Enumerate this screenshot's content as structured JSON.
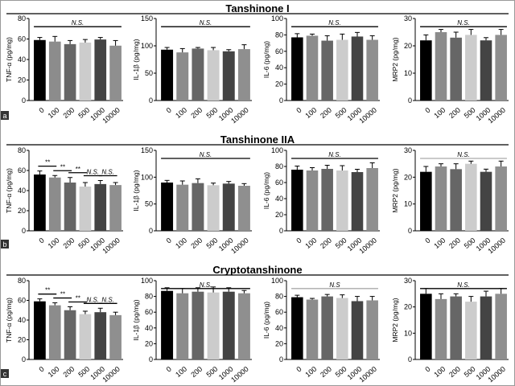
{
  "figure": {
    "rows": [
      {
        "title": "Tanshinone I",
        "panel_label": "a"
      },
      {
        "title": "Tanshinone IIA",
        "panel_label": "b"
      },
      {
        "title": "Cryptotanshinone",
        "panel_label": "c"
      }
    ],
    "bar_colors": [
      "#000000",
      "#8c8c8c",
      "#666666",
      "#cccccc",
      "#444444",
      "#8f8f8f"
    ]
  },
  "chart_data": [
    {
      "type": "bar",
      "row": 0,
      "ylabel": "TNF-α (pg/mg)",
      "categories": [
        "0",
        "100",
        "200",
        "500",
        "1000",
        "10000"
      ],
      "values": [
        59,
        57.5,
        55,
        56.5,
        59.5,
        53.5
      ],
      "errors": [
        2.5,
        5,
        3.5,
        3,
        2,
        5
      ],
      "ylim": [
        0,
        80
      ],
      "yticks": [
        0,
        20,
        40,
        60,
        80
      ],
      "annotations": [
        {
          "from": 0,
          "to": 5,
          "label": "N.S."
        }
      ]
    },
    {
      "type": "bar",
      "row": 0,
      "ylabel": "IL-1β (pg/mg)",
      "categories": [
        "0",
        "100",
        "200",
        "500",
        "1000",
        "10000"
      ],
      "values": [
        93,
        88,
        95,
        92,
        90,
        94
      ],
      "errors": [
        4,
        7,
        2,
        5,
        3,
        8
      ],
      "ylim": [
        0,
        150
      ],
      "yticks": [
        0,
        50,
        100,
        150
      ],
      "annotations": [
        {
          "from": 0,
          "to": 5,
          "label": "N.S."
        }
      ]
    },
    {
      "type": "bar",
      "row": 0,
      "ylabel": "IL-6 (pg/mg)",
      "categories": [
        "0",
        "100",
        "200",
        "500",
        "1000",
        "10000"
      ],
      "values": [
        77,
        79,
        73,
        74,
        78,
        74
      ],
      "errors": [
        4.5,
        2,
        6,
        7,
        5,
        5
      ],
      "ylim": [
        0,
        100
      ],
      "yticks": [
        0,
        20,
        40,
        60,
        80,
        100
      ],
      "annotations": [
        {
          "from": 0,
          "to": 5,
          "label": "N.S."
        }
      ]
    },
    {
      "type": "bar",
      "row": 0,
      "ylabel": "MRP2 (pg/mg)",
      "categories": [
        "0",
        "100",
        "200",
        "500",
        "1000",
        "10000"
      ],
      "values": [
        22,
        25,
        23,
        24,
        22,
        24
      ],
      "errors": [
        2,
        1,
        2,
        2,
        1,
        2
      ],
      "ylim": [
        0,
        30
      ],
      "yticks": [
        0,
        10,
        20,
        30
      ],
      "annotations": [
        {
          "from": 0,
          "to": 5,
          "label": "N.S."
        }
      ]
    },
    {
      "type": "bar",
      "row": 1,
      "ylabel": "TNF-α (pg/mg)",
      "categories": [
        "0",
        "100",
        "200",
        "500",
        "1000",
        "10000"
      ],
      "values": [
        56,
        53,
        48,
        44,
        46.5,
        45.5
      ],
      "errors": [
        3.5,
        2,
        5,
        4,
        3.5,
        2.5
      ],
      "ylim": [
        0,
        80
      ],
      "yticks": [
        0,
        20,
        40,
        60,
        80
      ],
      "annotations": [
        {
          "from": 0,
          "to": 1,
          "label": "**"
        },
        {
          "from": 1,
          "to": 2,
          "label": "**"
        },
        {
          "from": 2,
          "to": 3,
          "label": "**"
        },
        {
          "from": 3,
          "to": 4,
          "label": "N.S."
        },
        {
          "from": 4,
          "to": 5,
          "label": "N.S."
        }
      ]
    },
    {
      "type": "bar",
      "row": 1,
      "ylabel": "IL-1β (pg/mg)",
      "categories": [
        "0",
        "100",
        "200",
        "500",
        "1000",
        "10000"
      ],
      "values": [
        90,
        86,
        89,
        85,
        88,
        84
      ],
      "errors": [
        4,
        7,
        8,
        4,
        4,
        4
      ],
      "ylim": [
        0,
        150
      ],
      "yticks": [
        0,
        50,
        100,
        150
      ],
      "annotations": [
        {
          "from": 0,
          "to": 5,
          "label": "N.S."
        }
      ]
    },
    {
      "type": "bar",
      "row": 1,
      "ylabel": "IL-6 (pg/mg)",
      "categories": [
        "0",
        "100",
        "200",
        "500",
        "1000",
        "10000"
      ],
      "values": [
        76,
        75,
        77,
        75,
        73,
        78
      ],
      "errors": [
        4.5,
        3.5,
        4.5,
        6,
        3.5,
        6.5
      ],
      "ylim": [
        0,
        100
      ],
      "yticks": [
        0,
        20,
        40,
        60,
        80,
        100
      ],
      "annotations": [
        {
          "from": 0,
          "to": 5,
          "label": "N.S."
        }
      ]
    },
    {
      "type": "bar",
      "row": 1,
      "ylabel": "MRP2 (pg/mg)",
      "categories": [
        "0",
        "100",
        "200",
        "500",
        "1000",
        "10000"
      ],
      "values": [
        22,
        24,
        23,
        25,
        22,
        24
      ],
      "errors": [
        2,
        1,
        2,
        1,
        1,
        2
      ],
      "ylim": [
        0,
        30
      ],
      "yticks": [
        0,
        10,
        20,
        30
      ],
      "annotations": [
        {
          "from": 0,
          "to": 5,
          "label": "N.S.",
          "color": "#aaaaaa"
        }
      ]
    },
    {
      "type": "bar",
      "row": 2,
      "ylabel": "TNF-α (pg/mg)",
      "categories": [
        "0",
        "100",
        "200",
        "500",
        "1000",
        "10000"
      ],
      "values": [
        59,
        55,
        50,
        46,
        48,
        45
      ],
      "errors": [
        2.5,
        2.5,
        3.5,
        3,
        4,
        3
      ],
      "ylim": [
        0,
        80
      ],
      "yticks": [
        0,
        20,
        40,
        60,
        80
      ],
      "annotations": [
        {
          "from": 0,
          "to": 1,
          "label": "**"
        },
        {
          "from": 1,
          "to": 2,
          "label": "**"
        },
        {
          "from": 2,
          "to": 3,
          "label": "**"
        },
        {
          "from": 3,
          "to": 4,
          "label": "N.S."
        },
        {
          "from": 4,
          "to": 5,
          "label": "N.S."
        }
      ]
    },
    {
      "type": "bar",
      "row": 2,
      "ylabel": "IL-1β (pg/mg)",
      "categories": [
        "0",
        "100",
        "200",
        "500",
        "1000",
        "10000"
      ],
      "values": [
        87,
        84,
        86,
        85,
        86,
        84
      ],
      "errors": [
        4,
        6,
        5,
        7,
        5,
        3.5
      ],
      "ylim": [
        0,
        100
      ],
      "yticks": [
        0,
        20,
        40,
        60,
        80,
        100
      ],
      "annotations": [
        {
          "from": 0,
          "to": 5,
          "label": "N.S."
        }
      ]
    },
    {
      "type": "bar",
      "row": 2,
      "ylabel": "IL-6 (pg/mg)",
      "categories": [
        "0",
        "100",
        "200",
        "500",
        "1000",
        "10000"
      ],
      "values": [
        79,
        76,
        80,
        78,
        74,
        75
      ],
      "errors": [
        2.5,
        1.5,
        2.5,
        4,
        6,
        5
      ],
      "ylim": [
        0,
        100
      ],
      "yticks": [
        0,
        20,
        40,
        60,
        80,
        100
      ],
      "annotations": [
        {
          "from": 0,
          "to": 5,
          "label": "N.S",
          "color": "#aaaaaa"
        }
      ]
    },
    {
      "type": "bar",
      "row": 2,
      "ylabel": "MRP2 (pg/mg)",
      "categories": [
        "0",
        "100",
        "200",
        "500",
        "1000",
        "10000"
      ],
      "values": [
        25,
        23,
        24,
        22,
        24,
        25
      ],
      "errors": [
        2,
        2,
        1,
        2,
        2,
        2
      ],
      "ylim": [
        0,
        30
      ],
      "yticks": [
        0,
        10,
        20,
        30
      ],
      "annotations": [
        {
          "from": 0,
          "to": 5,
          "label": "N.S."
        }
      ]
    }
  ]
}
